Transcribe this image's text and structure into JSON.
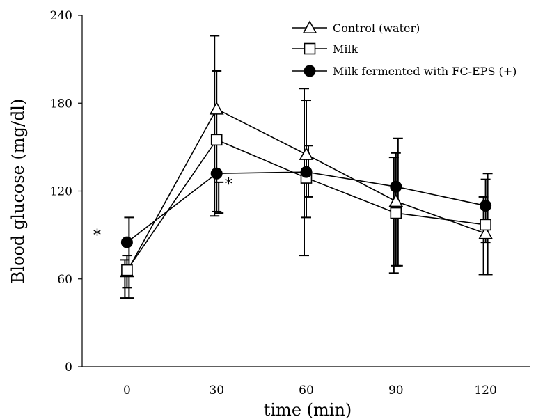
{
  "chart_data": {
    "type": "line",
    "title": "",
    "xlabel": "time (min)",
    "ylabel": "Blood glucose (mg/dl)",
    "x": [
      0,
      30,
      60,
      90,
      120
    ],
    "x_tick_labels": [
      "0",
      "30",
      "60",
      "90",
      "120"
    ],
    "xlim": [
      -15,
      135
    ],
    "ylim": [
      0,
      240
    ],
    "y_ticks": [
      0,
      60,
      120,
      180,
      240
    ],
    "y_tick_labels": [
      "0",
      "60",
      "120",
      "180",
      "240"
    ],
    "grid": false,
    "legend_position": "top-right",
    "series": [
      {
        "name": "Control (water)",
        "marker": "triangle-open",
        "values": [
          65,
          176,
          145,
          113,
          91
        ],
        "err_low": [
          47,
          103,
          76,
          64,
          63
        ],
        "err_high": [
          73,
          226,
          190,
          143,
          116
        ]
      },
      {
        "name": "Milk",
        "marker": "square-open",
        "values": [
          66,
          155,
          129,
          105,
          97
        ],
        "err_low": [
          54,
          106,
          102,
          69,
          85
        ],
        "err_high": [
          76,
          202,
          182,
          146,
          128
        ]
      },
      {
        "name": "Milk fermented with FC-EPS (+)",
        "marker": "circle-filled",
        "values": [
          85,
          132,
          133,
          123,
          110
        ],
        "err_low": [
          47,
          105,
          116,
          69,
          63
        ],
        "err_high": [
          102,
          126,
          151,
          156,
          132
        ]
      }
    ],
    "annotations": [
      {
        "text": "*",
        "x": -10,
        "y": 90
      },
      {
        "text": "*",
        "x": 34,
        "y": 125
      }
    ]
  }
}
